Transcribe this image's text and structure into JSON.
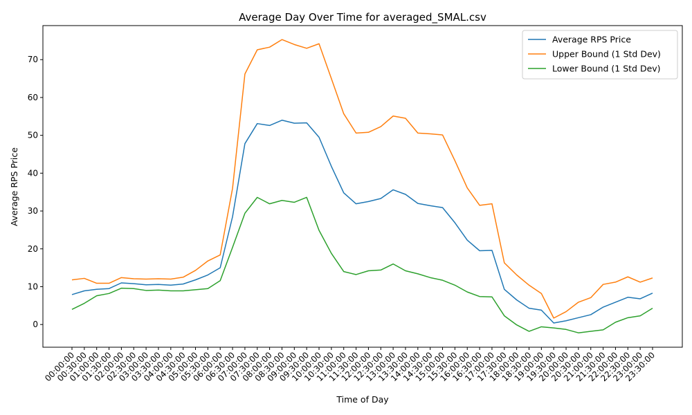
{
  "chart_data": {
    "type": "line",
    "title": "Average Day Over Time for averaged_SMAL.csv",
    "xlabel": "Time of Day",
    "ylabel": "Average RPS Price",
    "ylim": [
      -6,
      79
    ],
    "yticks": [
      0,
      10,
      20,
      30,
      40,
      50,
      60,
      70
    ],
    "grid": false,
    "legend_position": "top-right",
    "categories": [
      "00:00:00",
      "00:30:00",
      "01:00:00",
      "01:30:00",
      "02:00:00",
      "02:30:00",
      "03:00:00",
      "03:30:00",
      "04:00:00",
      "04:30:00",
      "05:00:00",
      "05:30:00",
      "06:00:00",
      "06:30:00",
      "07:00:00",
      "07:30:00",
      "08:00:00",
      "08:30:00",
      "09:00:00",
      "09:30:00",
      "10:00:00",
      "10:30:00",
      "11:00:00",
      "11:30:00",
      "12:00:00",
      "12:30:00",
      "13:00:00",
      "13:30:00",
      "14:00:00",
      "14:30:00",
      "15:00:00",
      "15:30:00",
      "16:00:00",
      "16:30:00",
      "17:00:00",
      "17:30:00",
      "18:00:00",
      "18:30:00",
      "19:00:00",
      "19:30:00",
      "20:00:00",
      "20:30:00",
      "21:00:00",
      "21:30:00",
      "22:00:00",
      "22:30:00",
      "23:00:00",
      "23:30:00"
    ],
    "series": [
      {
        "name": "Average RPS Price",
        "color": "#1f77b4",
        "values": [
          7.9,
          8.9,
          9.3,
          9.5,
          11.0,
          10.8,
          10.5,
          10.6,
          10.4,
          10.7,
          11.8,
          13.1,
          15.0,
          28.5,
          47.8,
          53.1,
          52.6,
          54.0,
          53.2,
          53.3,
          49.5,
          41.8,
          34.8,
          31.9,
          32.5,
          33.3,
          35.6,
          34.4,
          32.0,
          31.4,
          30.9,
          26.9,
          22.3,
          19.5,
          19.6,
          9.3,
          6.5,
          4.3,
          3.8,
          0.4,
          1.0,
          1.8,
          2.6,
          4.6,
          5.9,
          7.2,
          6.8,
          8.3
        ]
      },
      {
        "name": "Upper Bound (1 Std Dev)",
        "color": "#ff7f0e",
        "values": [
          11.8,
          12.2,
          10.9,
          10.9,
          12.4,
          12.1,
          12.0,
          12.1,
          12.0,
          12.5,
          14.3,
          16.8,
          18.4,
          36.0,
          66.2,
          72.6,
          73.3,
          75.3,
          74.0,
          73.0,
          74.2,
          65.0,
          55.7,
          50.6,
          50.8,
          52.3,
          55.1,
          54.5,
          50.6,
          50.4,
          50.1,
          43.3,
          36.1,
          31.5,
          31.9,
          16.3,
          13.1,
          10.4,
          8.2,
          1.7,
          3.4,
          5.9,
          7.1,
          10.6,
          11.2,
          12.6,
          11.2,
          12.3
        ]
      },
      {
        "name": "Lower Bound (1 Std Dev)",
        "color": "#2ca02c",
        "values": [
          4.0,
          5.6,
          7.6,
          8.2,
          9.6,
          9.5,
          9.0,
          9.1,
          8.9,
          8.9,
          9.2,
          9.5,
          11.6,
          20.4,
          29.4,
          33.6,
          31.9,
          32.8,
          32.3,
          33.6,
          24.9,
          18.8,
          14.0,
          13.2,
          14.2,
          14.4,
          16.0,
          14.2,
          13.4,
          12.4,
          11.7,
          10.4,
          8.6,
          7.4,
          7.3,
          2.3,
          -0.1,
          -1.8,
          -0.6,
          -0.9,
          -1.3,
          -2.2,
          -1.8,
          -1.4,
          0.6,
          1.8,
          2.3,
          4.3
        ]
      }
    ]
  }
}
